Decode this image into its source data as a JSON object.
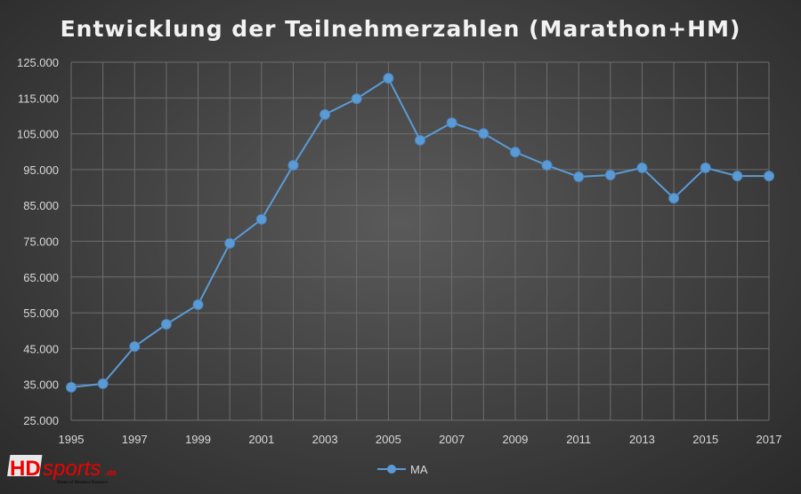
{
  "chart_data": {
    "type": "line",
    "title": "Entwicklung der Teilnehmerzahlen (Marathon+HM)",
    "xlabel": "",
    "ylabel": "",
    "x": [
      1995,
      1996,
      1997,
      1998,
      1999,
      2000,
      2001,
      2002,
      2003,
      2004,
      2005,
      2006,
      2007,
      2008,
      2009,
      2010,
      2011,
      2012,
      2013,
      2014,
      2015,
      2016,
      2017
    ],
    "series": [
      {
        "name": "MA",
        "color": "#5b9bd5",
        "values": [
          34200,
          35200,
          45600,
          51800,
          57300,
          74400,
          81100,
          96200,
          110400,
          114800,
          120500,
          103200,
          108100,
          105100,
          99900,
          96200,
          93000,
          93500,
          95500,
          87000,
          95500,
          93200,
          93200
        ]
      }
    ],
    "ylim": [
      25000,
      125000
    ],
    "yticks": [
      "25.000",
      "35.000",
      "45.000",
      "55.000",
      "65.000",
      "75.000",
      "85.000",
      "95.000",
      "105.000",
      "115.000",
      "125.000"
    ],
    "xticks": [
      "1995",
      "1997",
      "1999",
      "2001",
      "2003",
      "2005",
      "2007",
      "2009",
      "2011",
      "2013",
      "2015",
      "2017"
    ],
    "grid": true,
    "legend": "bottom"
  },
  "logo": {
    "text": "HDsports",
    "suffix": ".de",
    "tagline": "Home of Distance Runners"
  }
}
